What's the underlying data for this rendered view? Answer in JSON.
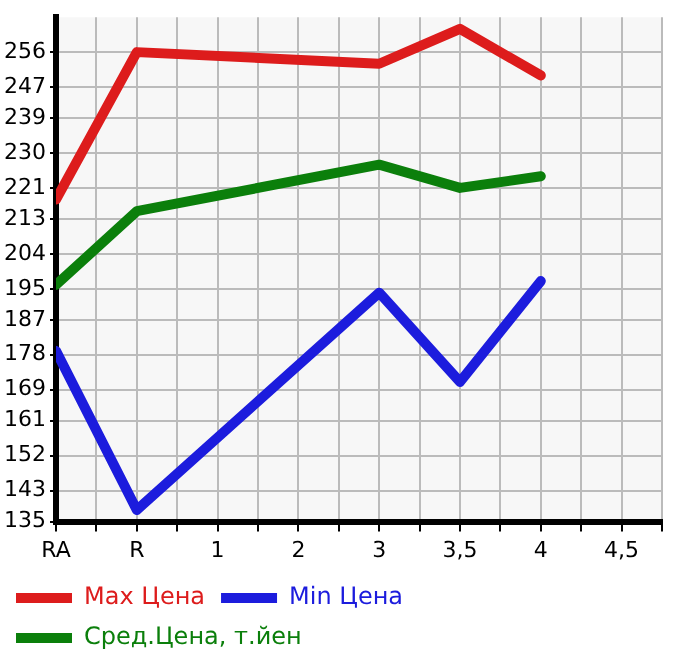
{
  "chart_data": {
    "type": "line",
    "categories": [
      "RA",
      "R",
      "1",
      "2",
      "3",
      "3,5",
      "4",
      "4,5"
    ],
    "series": [
      {
        "name": "Max Цена",
        "color": "#dd1c1c",
        "values": [
          218,
          256,
          null,
          null,
          253,
          262,
          250,
          null
        ]
      },
      {
        "name": "Min Цена",
        "color": "#1c1cdd",
        "values": [
          179,
          138,
          null,
          null,
          194,
          171,
          197,
          null
        ]
      },
      {
        "name": "Сред.Цена, т.йен",
        "color": "#0b7f0b",
        "values": [
          196,
          215,
          null,
          null,
          227,
          221,
          224,
          null
        ]
      }
    ],
    "ylim": [
      135,
      265
    ],
    "yticks": [
      135,
      143,
      152,
      161,
      169,
      178,
      187,
      195,
      204,
      213,
      221,
      230,
      239,
      247,
      256
    ],
    "grid": true,
    "legend": "bottom",
    "marker": "none",
    "line_style": "solid"
  }
}
